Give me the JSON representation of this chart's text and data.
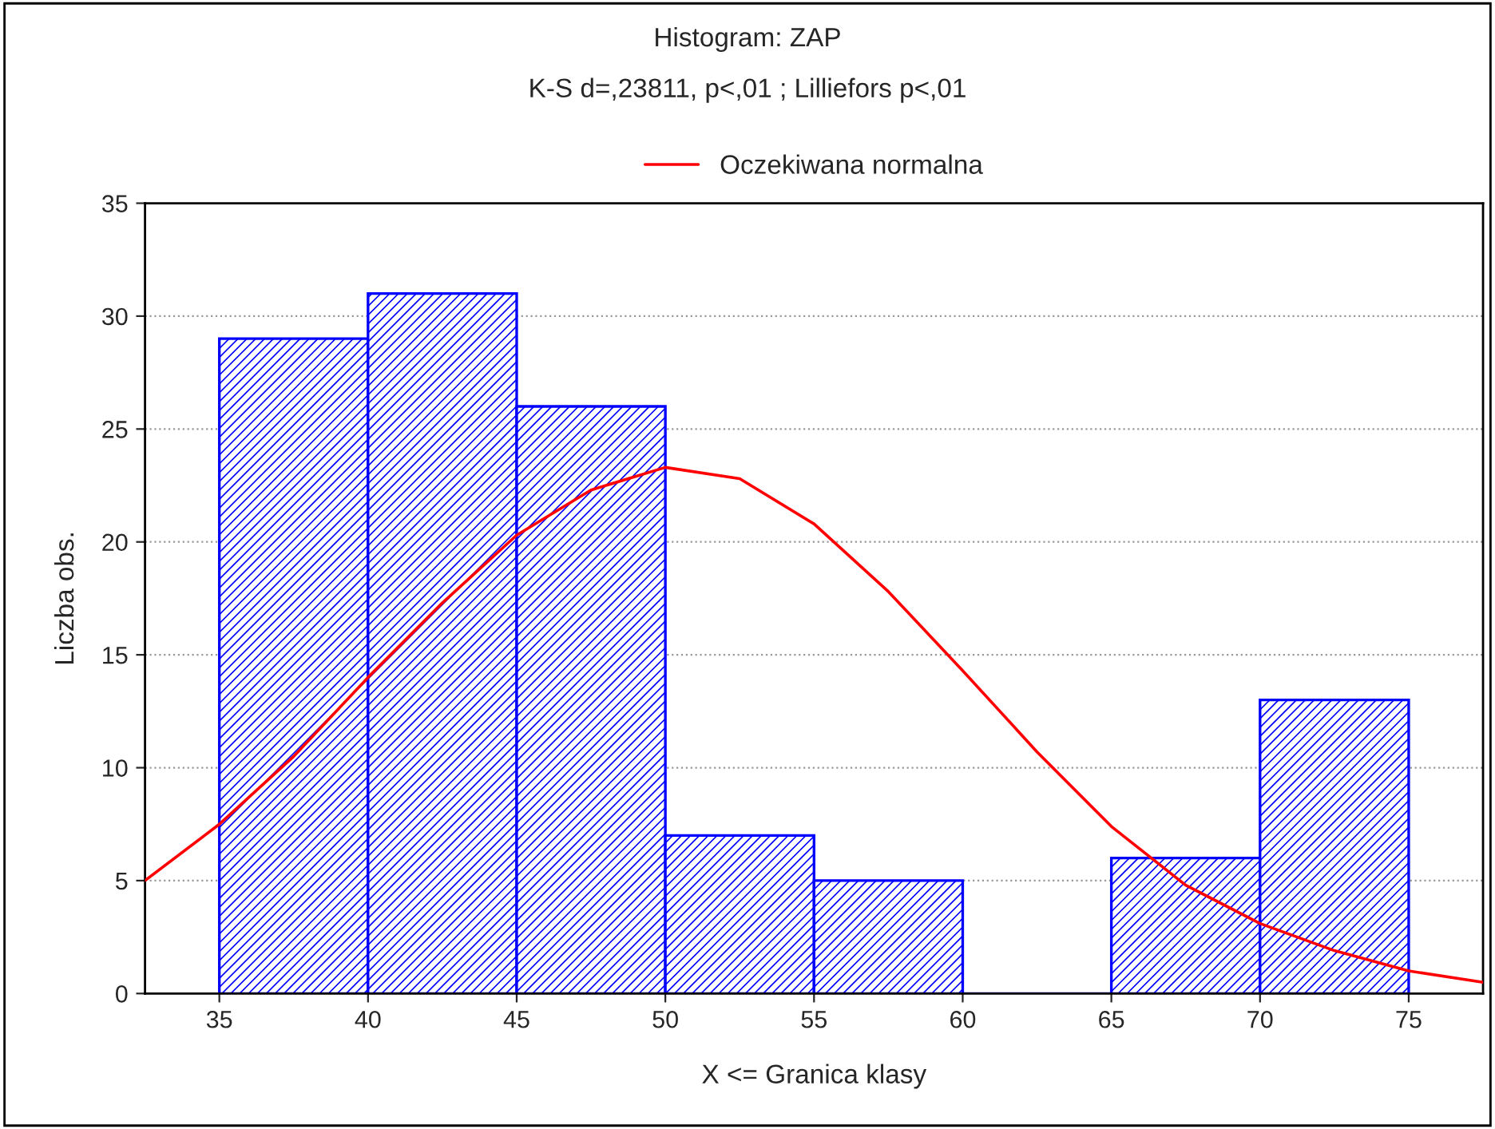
{
  "chart_data": {
    "type": "histogram",
    "title": "Histogram: ZAP",
    "subtitle": "K-S d=,23811, p<,01 ; Lilliefors p<,01",
    "xlabel": "X <= Granica klasy",
    "ylabel": "Liczba obs.",
    "xlim": [
      32.5,
      77.5
    ],
    "xticks": [
      35,
      40,
      45,
      50,
      55,
      60,
      65,
      70,
      75
    ],
    "ylim": [
      0,
      35
    ],
    "yticks": [
      0,
      5,
      10,
      15,
      20,
      25,
      30,
      35
    ],
    "grid": "y",
    "legend": "top",
    "series": [
      {
        "color": "#0000ff",
        "bins": [
          35,
          40,
          45,
          50,
          55,
          60,
          65,
          70,
          75
        ],
        "values": [
          29,
          31,
          26,
          7,
          5,
          0,
          6,
          13
        ]
      },
      {
        "type": "line",
        "name": "Oczekiwana normalna",
        "color": "#ff0000",
        "x": [
          32.5,
          35,
          37.5,
          40,
          42.5,
          45,
          47.5,
          50,
          52.5,
          55,
          57.5,
          60,
          62.5,
          65,
          67.5,
          70,
          72.5,
          75,
          77.5
        ],
        "values": [
          5,
          7.5,
          10.5,
          14,
          17.3,
          20.3,
          22.3,
          23.3,
          22.8,
          20.8,
          17.8,
          14.3,
          10.7,
          7.4,
          4.8,
          3.1,
          1.9,
          1.0,
          0.5
        ]
      }
    ]
  }
}
